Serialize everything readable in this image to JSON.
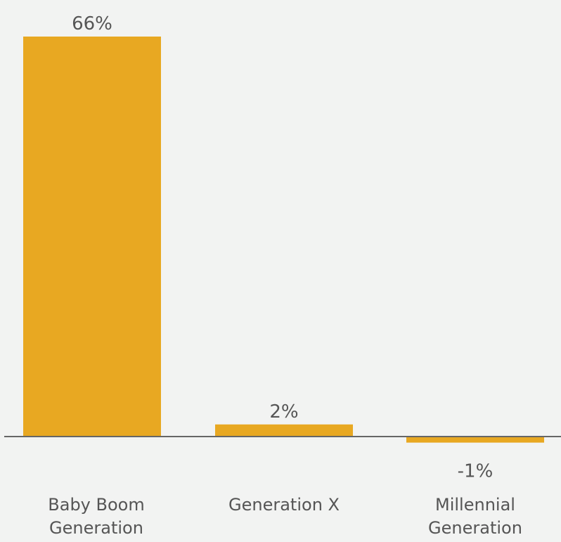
{
  "chart_data": {
    "type": "bar",
    "categories": [
      [
        "Baby Boom",
        "Generation"
      ],
      [
        "Generation X"
      ],
      [
        "Millennial",
        "Generation"
      ]
    ],
    "values": [
      66,
      2,
      -1
    ],
    "value_labels": [
      "66%",
      "2%",
      "-1%"
    ],
    "unit": "%",
    "ylim": [
      -1,
      66
    ],
    "grid": false,
    "legend": "none",
    "colors": {
      "bar": "#e8a822",
      "baseline": "#666666",
      "text": "#555555",
      "background": "#f2f3f2"
    }
  }
}
